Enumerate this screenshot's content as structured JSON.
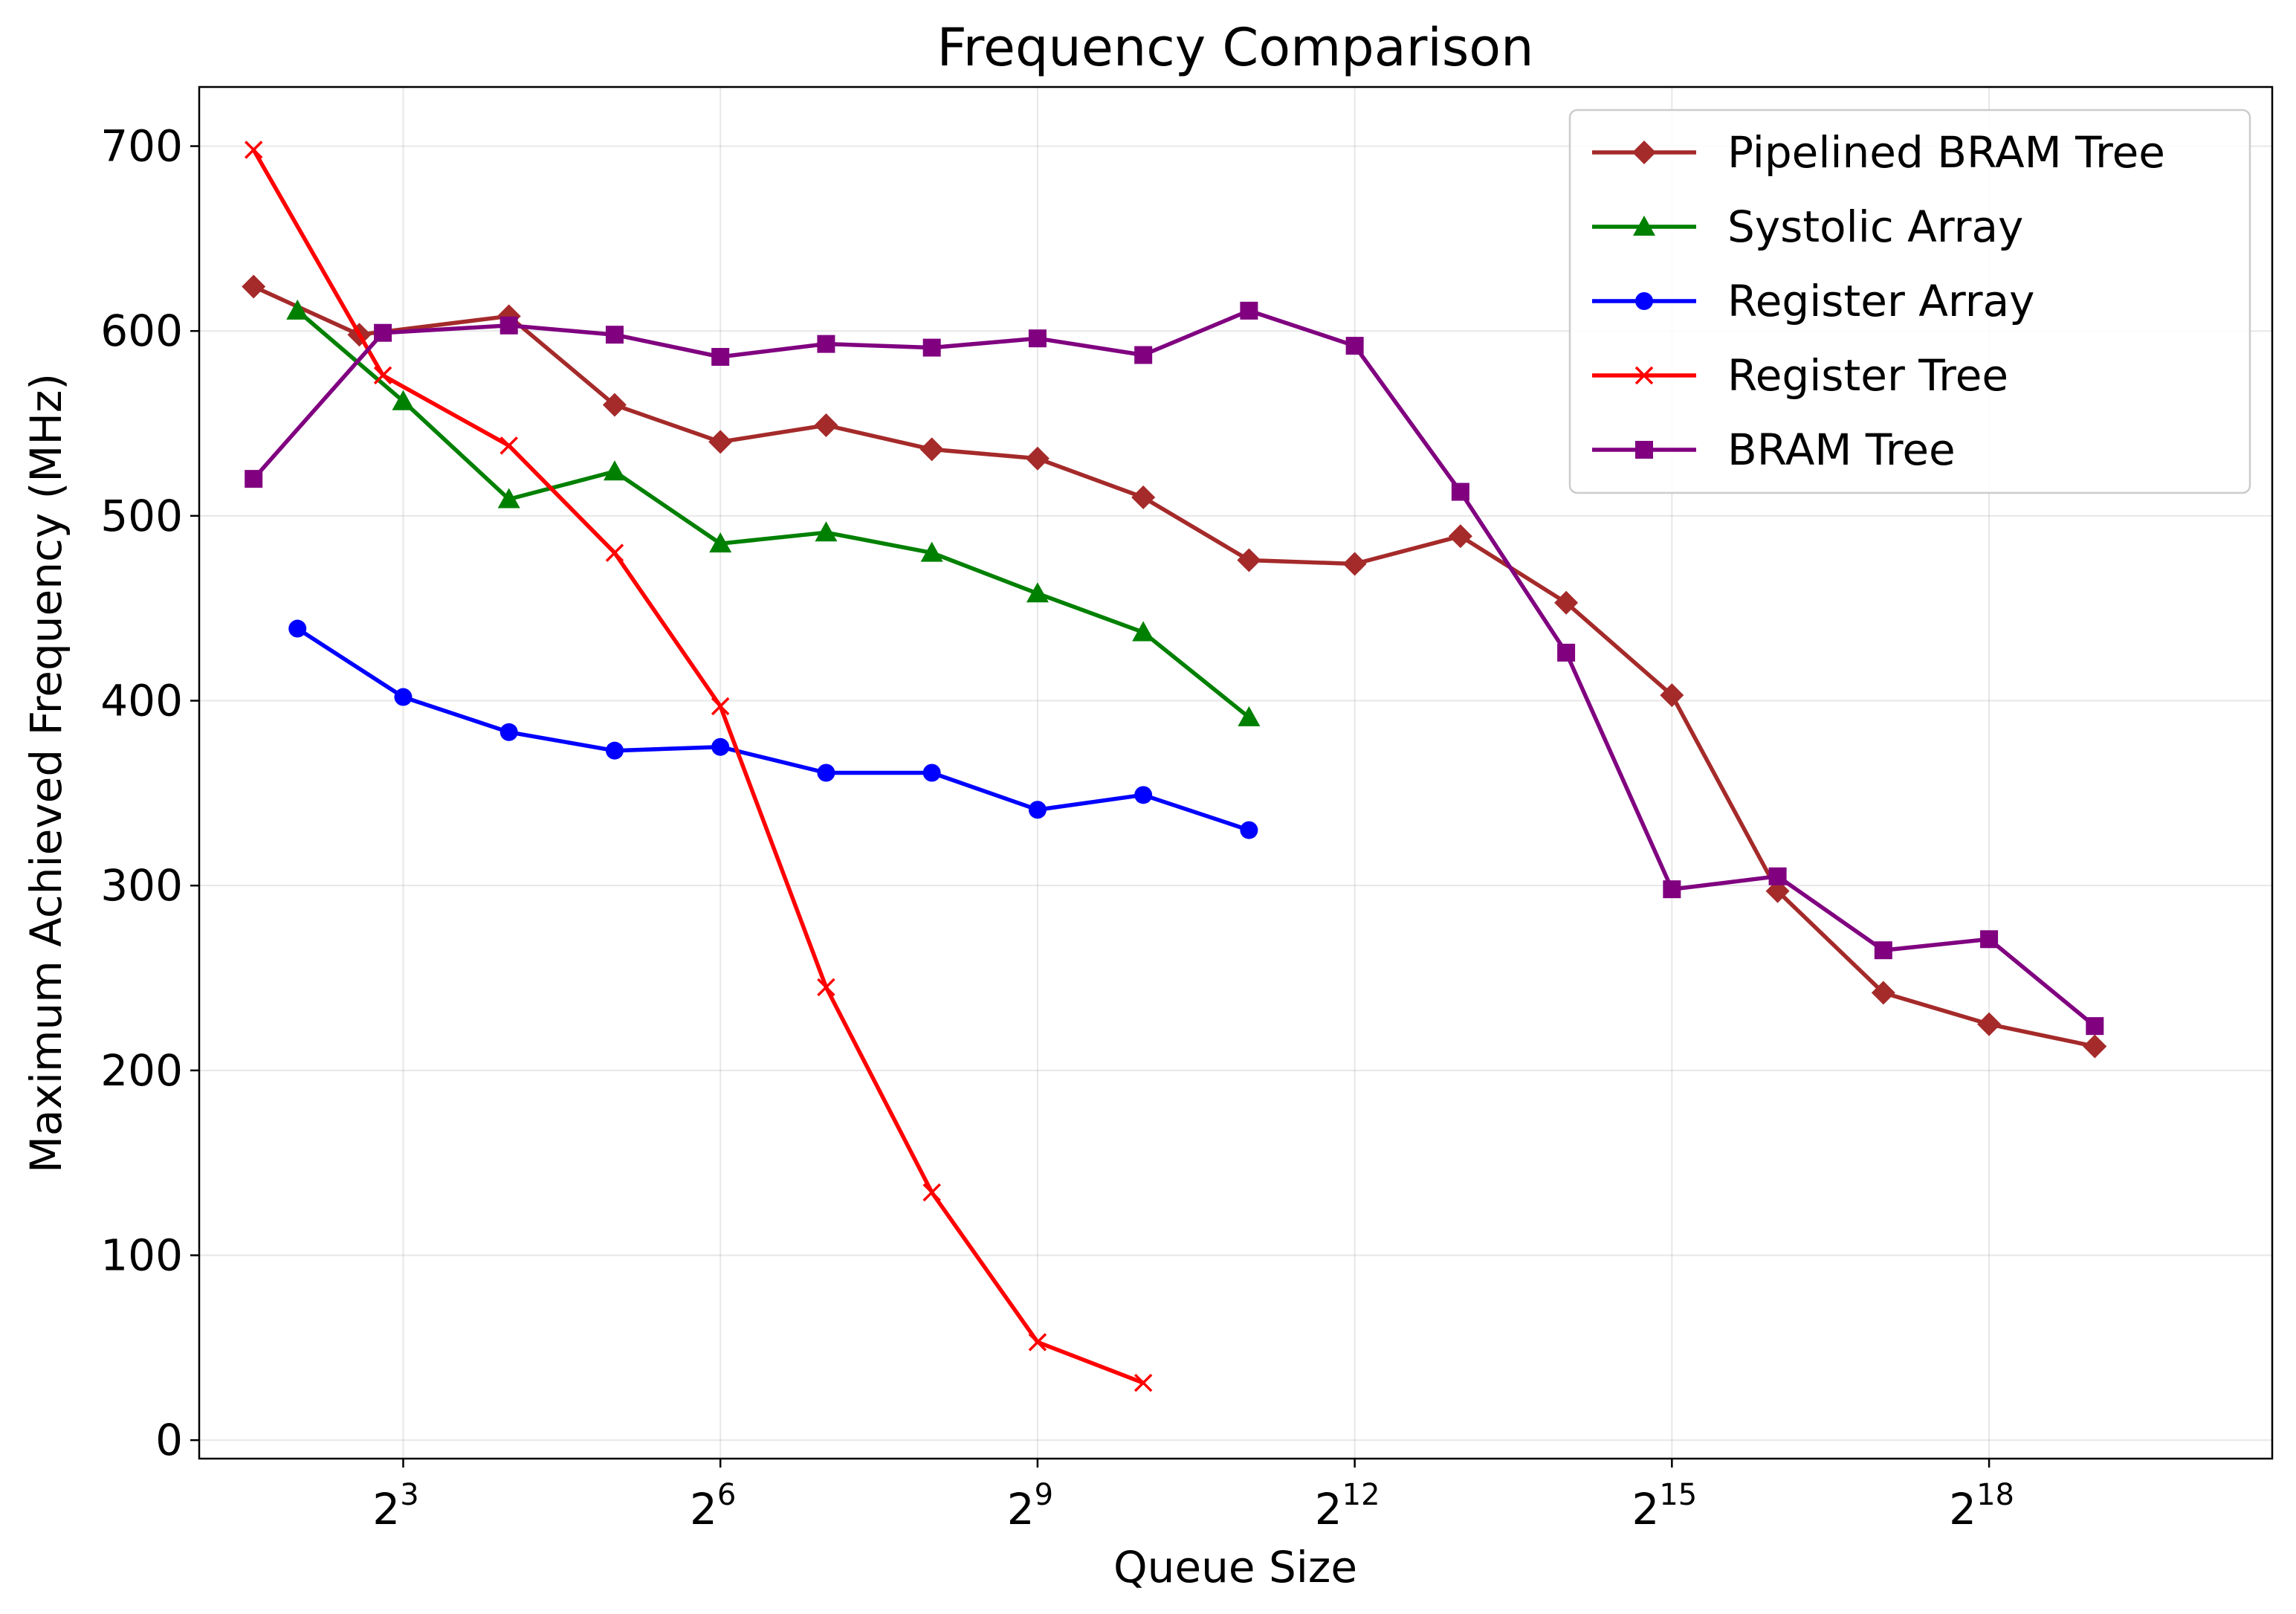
{
  "chart_data": {
    "type": "line",
    "title": "Frequency Comparison",
    "xlabel": "Queue Size",
    "ylabel": "Maximum Achieved Frequency (MHz)",
    "x_scale": "log2",
    "x_ticks": [
      {
        "base": "2",
        "exp": "3",
        "value": 8
      },
      {
        "base": "2",
        "exp": "6",
        "value": 64
      },
      {
        "base": "2",
        "exp": "9",
        "value": 512
      },
      {
        "base": "2",
        "exp": "12",
        "value": 4096
      },
      {
        "base": "2",
        "exp": "15",
        "value": 32768
      },
      {
        "base": "2",
        "exp": "18",
        "value": 262144
      }
    ],
    "y_ticks": [
      0,
      100,
      200,
      300,
      400,
      500,
      600,
      700
    ],
    "xlim": [
      2.1,
      1677722
    ],
    "ylim": [
      -10,
      732
    ],
    "grid": true,
    "legend_position": "top-right",
    "series": [
      {
        "name": "Pipelined BRAM Tree",
        "color": "#a52a2a",
        "marker": "diamond",
        "x": [
          3,
          6,
          16,
          32,
          64,
          128,
          256,
          512,
          1024,
          2048,
          4096,
          8192,
          16384,
          32768,
          65536,
          131072,
          262144,
          524288
        ],
        "y": [
          624,
          598,
          608,
          560,
          540,
          549,
          536,
          531,
          510,
          476,
          474,
          489,
          453,
          403,
          297,
          242,
          225,
          213
        ]
      },
      {
        "name": "Systolic Array",
        "color": "#008000",
        "marker": "triangle",
        "x": [
          4,
          8,
          16,
          32,
          64,
          128,
          256,
          512,
          1024,
          2048
        ],
        "y": [
          611,
          562,
          509,
          524,
          485,
          491,
          480,
          458,
          437,
          391
        ]
      },
      {
        "name": "Register Array",
        "color": "#0000ff",
        "marker": "circle",
        "x": [
          4,
          8,
          16,
          32,
          64,
          128,
          256,
          512,
          1024,
          2048
        ],
        "y": [
          439,
          402,
          383,
          373,
          375,
          361,
          361,
          341,
          349,
          330
        ]
      },
      {
        "name": "Register Tree",
        "color": "#ff0000",
        "marker": "x",
        "x": [
          3,
          7,
          16,
          32,
          64,
          128,
          256,
          512,
          1024
        ],
        "y": [
          698,
          576,
          538,
          480,
          397,
          245,
          134,
          53,
          31
        ]
      },
      {
        "name": "BRAM Tree",
        "color": "#800080",
        "marker": "square",
        "x": [
          3,
          7,
          16,
          32,
          64,
          128,
          256,
          512,
          1024,
          2048,
          4096,
          8192,
          16384,
          32768,
          65536,
          131072,
          262144,
          524288
        ],
        "y": [
          520,
          599,
          603,
          598,
          586,
          593,
          591,
          596,
          587,
          611,
          592,
          513,
          426,
          298,
          305,
          265,
          271,
          224
        ]
      }
    ]
  }
}
